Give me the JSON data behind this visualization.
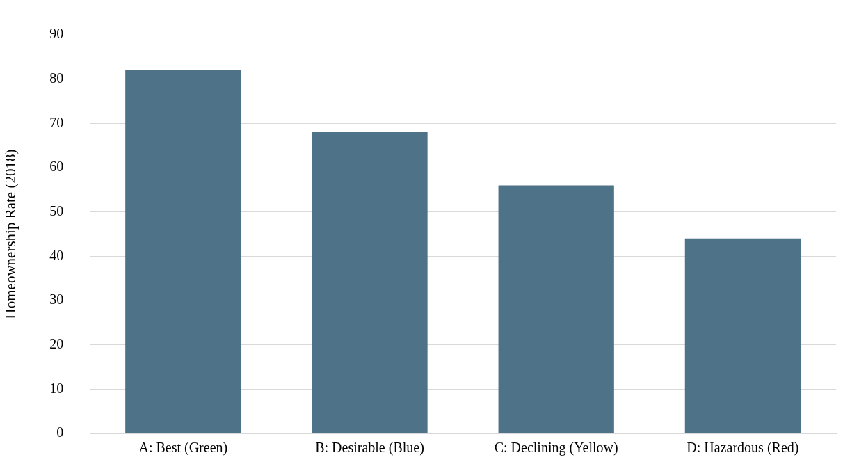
{
  "chart_data": {
    "type": "bar",
    "ylabel": "Homeownership Rate (2018)",
    "categories": [
      "A: Best (Green)",
      "B: Desirable (Blue)",
      "C: Declining (Yellow)",
      "D: Hazardous (Red)"
    ],
    "values": [
      82,
      68,
      56,
      44
    ],
    "color": "#4e7389",
    "ylim": [
      0,
      90
    ],
    "yticks": [
      0,
      10,
      20,
      30,
      40,
      50,
      60,
      70,
      80,
      90
    ],
    "grid": "y",
    "legend": false
  }
}
